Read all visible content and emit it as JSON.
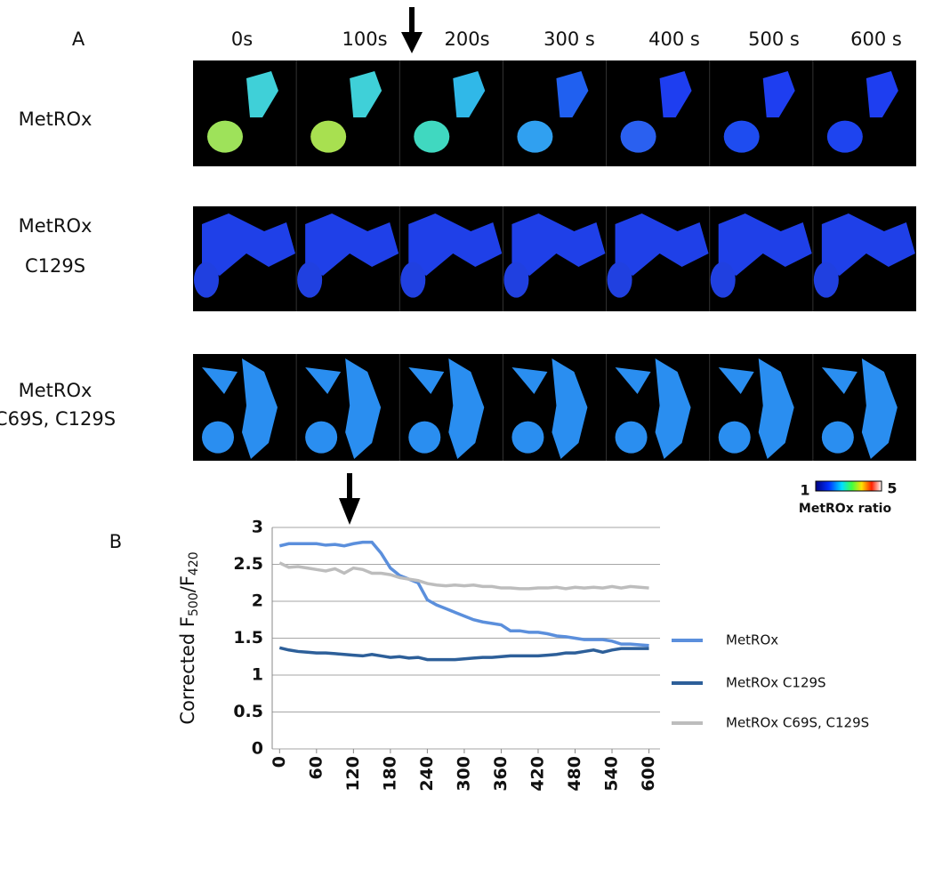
{
  "panel_a": {
    "label": "A",
    "times": [
      "0s",
      "100s",
      "200s",
      "300 s",
      "400 s",
      "500 s",
      "600 s"
    ],
    "rows": [
      [
        "MetROx"
      ],
      [
        "MetROx",
        "C129S"
      ],
      [
        "MetROx",
        "C69S, C129S"
      ]
    ],
    "colorbar": {
      "min": 1,
      "max": 5,
      "label": "MetROx ratio"
    }
  },
  "panel_b": {
    "label": "B"
  },
  "chart_data": {
    "type": "line",
    "y_label": [
      "Corrected F",
      "500",
      "/F",
      "420"
    ],
    "x": [
      0,
      15,
      30,
      45,
      60,
      75,
      90,
      105,
      120,
      135,
      150,
      165,
      180,
      195,
      210,
      225,
      240,
      255,
      270,
      285,
      300,
      315,
      330,
      345,
      360,
      375,
      390,
      405,
      420,
      435,
      450,
      465,
      480,
      495,
      510,
      525,
      540,
      555,
      570,
      585,
      600
    ],
    "xlim": [
      -12,
      618
    ],
    "xticks": [
      0,
      60,
      120,
      180,
      240,
      300,
      360,
      420,
      480,
      540,
      600
    ],
    "ylim": [
      0,
      3
    ],
    "yticks": [
      0,
      0.5,
      1,
      1.5,
      2,
      2.5,
      3
    ],
    "grid": true,
    "legend": "right",
    "series": [
      {
        "name": "MetROx",
        "color": "#5b8fdc",
        "values": [
          2.75,
          2.78,
          2.78,
          2.78,
          2.78,
          2.76,
          2.77,
          2.75,
          2.78,
          2.8,
          2.8,
          2.65,
          2.45,
          2.35,
          2.3,
          2.25,
          2.02,
          1.95,
          1.9,
          1.85,
          1.8,
          1.75,
          1.72,
          1.7,
          1.68,
          1.6,
          1.6,
          1.58,
          1.58,
          1.56,
          1.53,
          1.52,
          1.5,
          1.48,
          1.48,
          1.48,
          1.46,
          1.42,
          1.42,
          1.41,
          1.4
        ]
      },
      {
        "name": "MetROx C129S",
        "color": "#2d5f99",
        "values": [
          1.37,
          1.34,
          1.32,
          1.31,
          1.3,
          1.3,
          1.29,
          1.28,
          1.27,
          1.26,
          1.28,
          1.26,
          1.24,
          1.25,
          1.23,
          1.24,
          1.21,
          1.21,
          1.21,
          1.21,
          1.22,
          1.23,
          1.24,
          1.24,
          1.25,
          1.26,
          1.26,
          1.26,
          1.26,
          1.27,
          1.28,
          1.3,
          1.3,
          1.32,
          1.34,
          1.31,
          1.34,
          1.36,
          1.36,
          1.36,
          1.36
        ]
      },
      {
        "name": "MetROx C69S, C129S",
        "color": "#bdbdbd",
        "values": [
          2.52,
          2.46,
          2.47,
          2.45,
          2.43,
          2.41,
          2.44,
          2.38,
          2.45,
          2.43,
          2.38,
          2.38,
          2.36,
          2.32,
          2.3,
          2.28,
          2.24,
          2.22,
          2.21,
          2.22,
          2.21,
          2.22,
          2.2,
          2.2,
          2.18,
          2.18,
          2.17,
          2.17,
          2.18,
          2.18,
          2.19,
          2.17,
          2.19,
          2.18,
          2.19,
          2.18,
          2.2,
          2.18,
          2.2,
          2.19,
          2.18
        ]
      }
    ]
  }
}
